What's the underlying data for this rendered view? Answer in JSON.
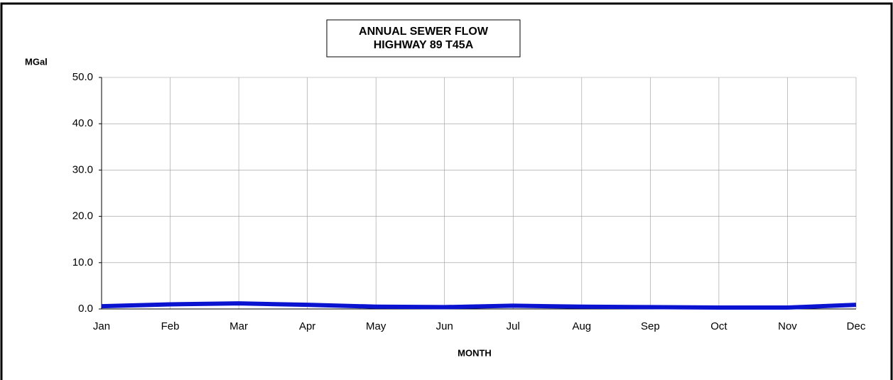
{
  "chart_data": {
    "type": "line",
    "title": [
      "ANNUAL SEWER FLOW",
      "HIGHWAY 89 T45A"
    ],
    "y_label": "MGal",
    "x_label": "MONTH",
    "categories": [
      "Jan",
      "Feb",
      "Mar",
      "Apr",
      "May",
      "Jun",
      "Jul",
      "Aug",
      "Sep",
      "Oct",
      "Nov",
      "Dec"
    ],
    "values": [
      0.6,
      1.0,
      1.2,
      0.9,
      0.5,
      0.4,
      0.7,
      0.5,
      0.4,
      0.3,
      0.3,
      0.9
    ],
    "color": "#0a14d0",
    "ylim": [
      0,
      50
    ],
    "yticks": [
      {
        "value": 0,
        "label": "0.0"
      },
      {
        "value": 10,
        "label": "10.0"
      },
      {
        "value": 20,
        "label": "20.0"
      },
      {
        "value": 30,
        "label": "30.0"
      },
      {
        "value": 40,
        "label": "40.0"
      },
      {
        "value": 50,
        "label": "50.0"
      }
    ],
    "grid": true
  }
}
